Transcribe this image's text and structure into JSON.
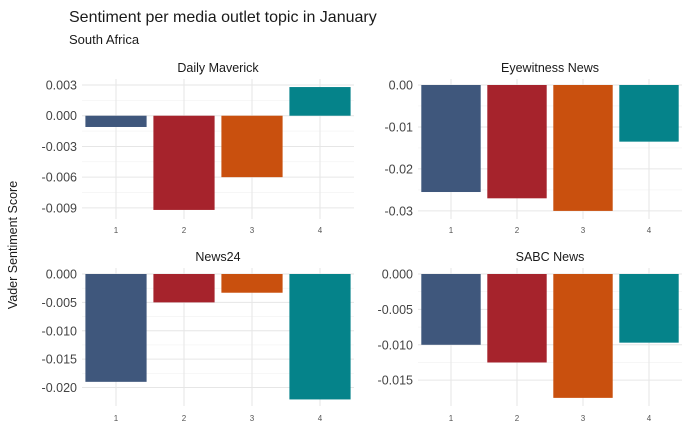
{
  "chart_data": {
    "type": "bar",
    "title": "Sentiment per media outlet topic in January",
    "subtitle": "South Africa",
    "ylabel": "Vader Sentiment Score",
    "categories": [
      "1",
      "2",
      "3",
      "4"
    ],
    "colors": [
      "#3f577c",
      "#a6232c",
      "#c9500e",
      "#05838a"
    ],
    "grid": true,
    "panels": [
      {
        "name": "Daily Maverick",
        "values": [
          -0.0011,
          -0.0092,
          -0.006,
          0.0028
        ],
        "ylim": [
          -0.0095,
          0.003
        ],
        "yticks": [
          0.003,
          0.0,
          -0.003,
          -0.006,
          -0.009
        ],
        "yticklabels": [
          "0.003",
          "0.000",
          "-0.003",
          "-0.006",
          "-0.009"
        ]
      },
      {
        "name": "Eyewitness News",
        "values": [
          -0.0255,
          -0.027,
          -0.03,
          -0.0135
        ],
        "ylim": [
          -0.0305,
          0.0
        ],
        "yticks": [
          0.0,
          -0.01,
          -0.02,
          -0.03
        ],
        "yticklabels": [
          "0.00",
          "-0.01",
          "-0.02",
          "-0.03"
        ]
      },
      {
        "name": "News24",
        "values": [
          -0.019,
          -0.005,
          -0.0033,
          -0.0221
        ],
        "ylim": [
          -0.0222,
          0.0
        ],
        "yticks": [
          0.0,
          -0.005,
          -0.01,
          -0.015,
          -0.02
        ],
        "yticklabels": [
          "0.000",
          "-0.005",
          "-0.010",
          "-0.015",
          "-0.020"
        ]
      },
      {
        "name": "SABC News",
        "values": [
          -0.01,
          -0.0125,
          -0.0175,
          -0.0097
        ],
        "ylim": [
          -0.0178,
          0.0
        ],
        "yticks": [
          0.0,
          -0.005,
          -0.01,
          -0.015
        ],
        "yticklabels": [
          "0.000",
          "-0.005",
          "-0.010",
          "-0.015"
        ]
      }
    ]
  }
}
